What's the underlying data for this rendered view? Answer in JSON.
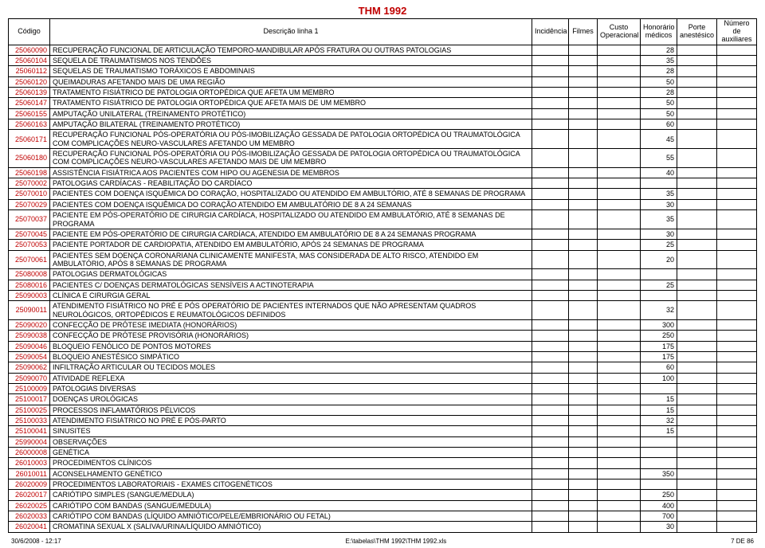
{
  "title": "THM 1992",
  "headers": {
    "codigo": "Código",
    "desc": "Descrição linha 1",
    "incidencia": "Incidência",
    "filmes": "Filmes",
    "custo": "Custo Operacional",
    "honorario": "Honorário médicos",
    "porte": "Porte anestésico",
    "numero": "Número de auxiliares"
  },
  "footer": {
    "left": "30/6/2008 - 12:17",
    "center": "E:\\tabelas\\THM 1992\\THM 1992.xls",
    "right": "7 DE 86"
  },
  "rows": [
    {
      "codigo": "25060090",
      "desc": "RECUPERAÇÃO FUNCIONAL DE ARTICULAÇÃO TEMPORO-MANDIBULAR APÓS FRATURA OU OUTRAS PATOLOGIAS",
      "hon": "28"
    },
    {
      "codigo": "25060104",
      "desc": "SEQUELA DE TRAUMATISMOS NOS TENDÕES",
      "hon": "35"
    },
    {
      "codigo": "25060112",
      "desc": "SEQUELAS DE TRAUMATISMO TORÁXICOS E ABDOMINAIS",
      "hon": "28"
    },
    {
      "codigo": "25060120",
      "desc": "QUEIMADURAS AFETANDO MAIS DE UMA REGIÃO",
      "hon": "50"
    },
    {
      "codigo": "25060139",
      "desc": "TRATAMENTO FISIÁTRICO DE PATOLOGIA ORTOPÉDICA QUE AFETA UM MEMBRO",
      "hon": "28"
    },
    {
      "codigo": "25060147",
      "desc": "TRATAMENTO FISIÁTRICO DE PATOLOGIA ORTOPÉDICA QUE AFETA MAIS DE UM MEMBRO",
      "hon": "50"
    },
    {
      "codigo": "25060155",
      "desc": "AMPUTAÇÃO UNILATERAL (TREINAMENTO PROTÉTICO)",
      "hon": "50"
    },
    {
      "codigo": "25060163",
      "desc": "AMPUTAÇÃO BILATERAL (TREINAMENTO PROTÉTICO)",
      "hon": "60"
    },
    {
      "codigo": "25060171",
      "desc": "RECUPERAÇÃO FUNCIONAL PÓS-OPERATÓRIA OU PÓS-IMOBILIZAÇÃO GESSADA DE PATOLOGIA ORTOPÉDICA OU TRAUMATOLÓGICA COM COMPLICAÇÕES NEURO-VASCULARES AFETANDO UM MEMBRO",
      "hon": "45"
    },
    {
      "codigo": "25060180",
      "desc": "RECUPERAÇÃO FUNCIONAL PÓS-OPERATÓRIA OU PÓS-IMOBILIZAÇÃO GESSADA DE PATOLOGIA ORTOPÉDICA OU TRAUMATOLÓGICA COM COMPLICAÇÕES NEURO-VASCULARES AFETANDO MAIS DE UM MEMBRO",
      "hon": "55"
    },
    {
      "codigo": "25060198",
      "desc": "ASSISTÊNCIA FISIÁTRICA AOS PACIENTES COM HIPO OU AGENESIA DE MEMBROS",
      "hon": "40"
    },
    {
      "codigo": "25070002",
      "desc": "PATOLOGIAS CARDÍACAS - REABILITAÇÃO DO CARDÍACO",
      "hon": ""
    },
    {
      "codigo": "25070010",
      "desc": "PACIENTES COM DOENÇA ISQUÊMICA DO CORAÇÃO, HOSPITALIZADO OU ATENDIDO EM AMBULTÓRIO, ATÉ  8 SEMANAS  DE PROGRAMA",
      "hon": "35"
    },
    {
      "codigo": "25070029",
      "desc": "PACIENTES COM DOENÇA ISQUÊMICA DO CORAÇÃO ATENDIDO EM AMBULATÓRIO DE 8 A 24 SEMANAS",
      "hon": "30"
    },
    {
      "codigo": "25070037",
      "desc": "PACIENTE  EM  PÓS-OPERATÓRIO DE CIRURGIA CARDÍACA, HOSPITALIZADO  OU  ATENDIDO  EM  AMBULATÓRIO, ATÉ 8 SEMANAS DE PROGRAMA",
      "hon": "35"
    },
    {
      "codigo": "25070045",
      "desc": "PACIENTE  EM  PÓS-OPERATÓRIO DE CIRURGIA CARDÍACA, ATENDIDO EM AMBULATÓRIO DE 8 A 24 SEMANAS PROGRAMA",
      "hon": "30"
    },
    {
      "codigo": "25070053",
      "desc": "PACIENTE PORTADOR DE CARDIOPATIA, ATENDIDO EM AMBULATÓRIO, APÓS 24 SEMANAS DE PROGRAMA",
      "hon": "25"
    },
    {
      "codigo": "25070061",
      "desc": "PACIENTES SEM DOENÇA CORONARIANA CLINICAMENTE MANIFESTA, MAS CONSIDERADA DE ALTO  RISCO, ATENDIDO  EM AMBULATÓRIO, APÓS 8 SEMANAS DE PROGRAMA",
      "hon": "20"
    },
    {
      "codigo": "25080008",
      "desc": "PATOLOGIAS DERMATOLÓGICAS",
      "hon": ""
    },
    {
      "codigo": "25080016",
      "desc": "PACIENTES C/ DOENÇAS DERMATOLÓGICAS SENSÍVEIS A ACTINOTERAPIA",
      "hon": "25"
    },
    {
      "codigo": "25090003",
      "desc": "CLÍNICA E CIRURGIA GERAL",
      "hon": ""
    },
    {
      "codigo": "25090011",
      "desc": "ATENDIMENTO FISIÁTRICO NO PRÉ E PÓS OPERATÓRIO DE PACIENTES INTERNADOS QUE NÃO APRESENTAM QUADROS NEUROLÓGICOS, ORTOPÉDICOS E REUMATOLÓGICOS DEFINIDOS",
      "hon": "32"
    },
    {
      "codigo": "25090020",
      "desc": "CONFECÇÃO DE PRÓTESE IMEDIATA (HONORÁRIOS)",
      "hon": "300"
    },
    {
      "codigo": "25090038",
      "desc": "CONFECÇÃO DE PRÓTESE PROVISÓRIA (HONORÁRIOS)",
      "hon": "250"
    },
    {
      "codigo": "25090046",
      "desc": "BLOQUEIO FENÓLICO DE PONTOS MOTORES",
      "hon": "175"
    },
    {
      "codigo": "25090054",
      "desc": "BLOQUEIO ANESTÉSICO SIMPÁTICO",
      "hon": "175"
    },
    {
      "codigo": "25090062",
      "desc": "INFILTRAÇÃO ARTICULAR OU TECIDOS MOLES",
      "hon": "60"
    },
    {
      "codigo": "25090070",
      "desc": "ATIVIDADE REFLEXA",
      "hon": "100"
    },
    {
      "codigo": "25100009",
      "desc": "PATOLOGIAS DIVERSAS",
      "hon": ""
    },
    {
      "codigo": "25100017",
      "desc": "DOENÇAS UROLÓGICAS",
      "hon": "15"
    },
    {
      "codigo": "25100025",
      "desc": "PROCESSOS INFLAMATÓRIOS PÉLVICOS",
      "hon": "15"
    },
    {
      "codigo": "25100033",
      "desc": "ATENDIMENTO FISIÁTRICO NO PRÉ E PÓS-PARTO",
      "hon": "32"
    },
    {
      "codigo": "25100041",
      "desc": "SINUSITES",
      "hon": "15"
    },
    {
      "codigo": "25990004",
      "desc": "OBSERVAÇÕES",
      "hon": ""
    },
    {
      "codigo": "26000008",
      "desc": "GENÉTICA",
      "hon": ""
    },
    {
      "codigo": "26010003",
      "desc": "PROCEDIMENTOS CLÍNICOS",
      "hon": ""
    },
    {
      "codigo": "26010011",
      "desc": "ACONSELHAMENTO GENÉTICO",
      "hon": "350"
    },
    {
      "codigo": "26020009",
      "desc": "PROCEDIMENTOS LABORATORIAIS - EXAMES CITOGENÉTICOS",
      "hon": ""
    },
    {
      "codigo": "26020017",
      "desc": "CARIÓTIPO SIMPLES (SANGUE/MEDULA)",
      "hon": "250"
    },
    {
      "codigo": "26020025",
      "desc": "CARIÓTIPO COM BANDAS (SANGUE/MEDULA)",
      "hon": "400"
    },
    {
      "codigo": "26020033",
      "desc": "CARIÓTIPO COM BANDAS (LÍQUIDO AMNIÓTICO/PELE/EMBRIONÁRIO OU FETAL)",
      "hon": "700"
    },
    {
      "codigo": "26020041",
      "desc": "CROMATINA SEXUAL X (SALIVA/URINA/LÍQUIDO AMNIÓTICO)",
      "hon": "30"
    }
  ]
}
